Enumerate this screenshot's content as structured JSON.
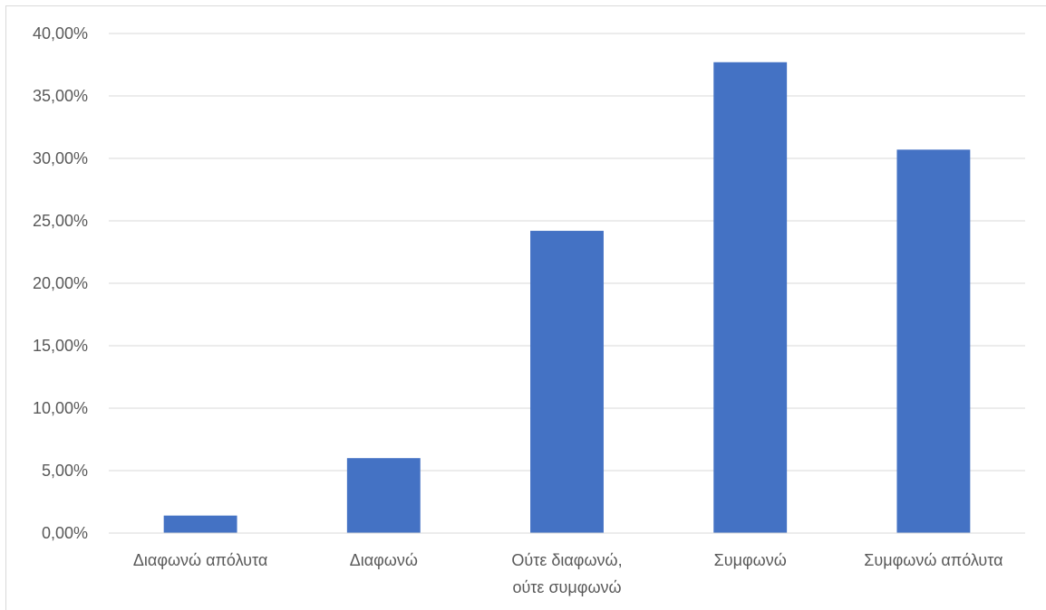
{
  "chart_data": {
    "type": "bar",
    "categories": [
      [
        "Διαφωνώ απόλυτα"
      ],
      [
        "Διαφωνώ"
      ],
      [
        "Ούτε διαφωνώ,",
        "ούτε συμφωνώ"
      ],
      [
        "Συμφωνώ"
      ],
      [
        "Συμφωνώ απόλυτα"
      ]
    ],
    "values": [
      1.4,
      6.0,
      24.2,
      37.7,
      30.7
    ],
    "y_ticks": [
      "0,00%",
      "5,00%",
      "10,00%",
      "15,00%",
      "20,00%",
      "25,00%",
      "30,00%",
      "35,00%",
      "40,00%"
    ],
    "ylim": [
      0,
      40
    ],
    "grid": true,
    "bar_color": "#4472c4",
    "grid_color": "#d9d9d9"
  }
}
